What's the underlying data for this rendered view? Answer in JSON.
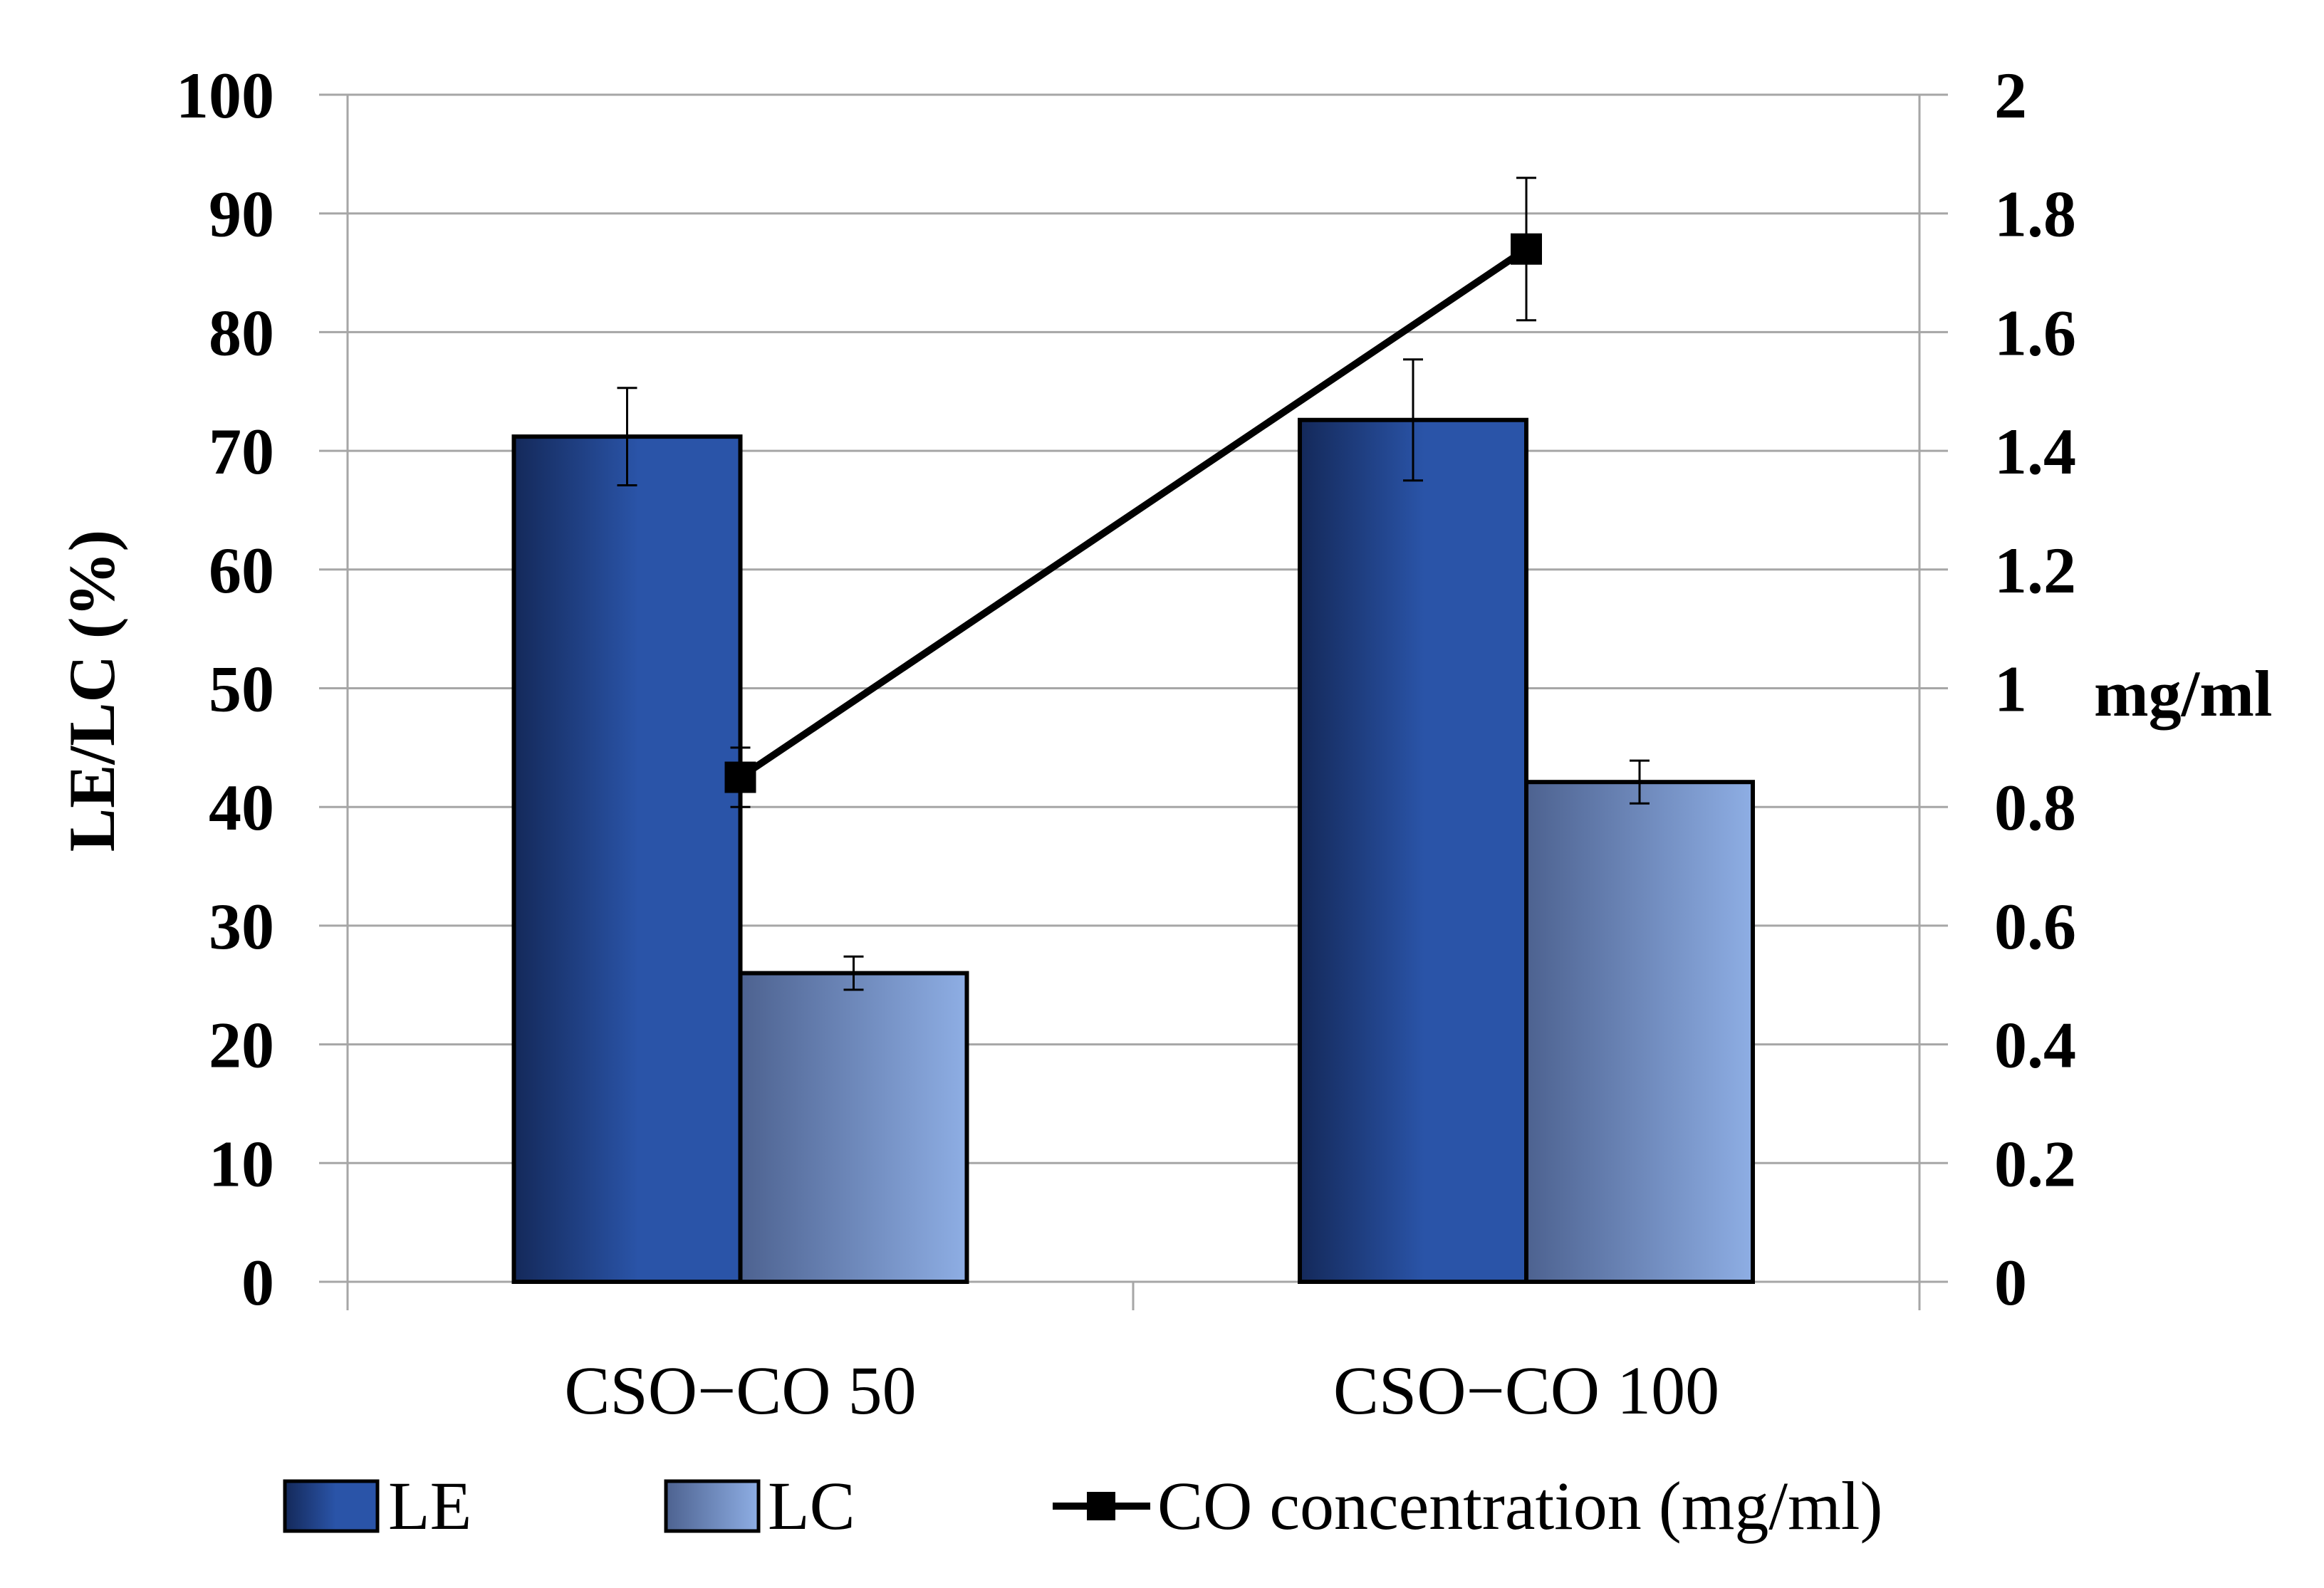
{
  "chart_data": {
    "type": "bar",
    "categories": [
      "CSO−CO 50",
      "CSO−CO 100"
    ],
    "series": [
      {
        "name": "LE",
        "axis": "left",
        "values": [
          71.2,
          72.6
        ],
        "errors": [
          4.1,
          5.1
        ],
        "color_dark": "#14295a",
        "color_light": "#2a54a8"
      },
      {
        "name": "LC",
        "axis": "left",
        "values": [
          26.0,
          42.1
        ],
        "errors": [
          1.4,
          1.8
        ],
        "color_dark": "#4d6290",
        "color_light": "#8eaee4"
      }
    ],
    "line_series": {
      "name": "CO concentration (mg/ml)",
      "axis": "right",
      "values": [
        0.85,
        1.74
      ],
      "errors": [
        0.05,
        0.12
      ],
      "color": "#000000"
    },
    "ylabel": "LE/LC (%)",
    "ylim": [
      0,
      100
    ],
    "yticks": [
      "0",
      "10",
      "20",
      "30",
      "40",
      "50",
      "60",
      "70",
      "80",
      "90",
      "100"
    ],
    "y2label": "mg/ml",
    "y2lim": [
      0,
      2
    ],
    "y2ticks": [
      "0",
      "0.2",
      "0.4",
      "0.6",
      "0.8",
      "1",
      "1.2",
      "1.4",
      "1.6",
      "1.8",
      "2"
    ],
    "grid": true,
    "legend": "bottom"
  },
  "legend": {
    "le_label": "LE",
    "lc_label": "LC",
    "co_label": "CO concentration (mg/ml)"
  }
}
